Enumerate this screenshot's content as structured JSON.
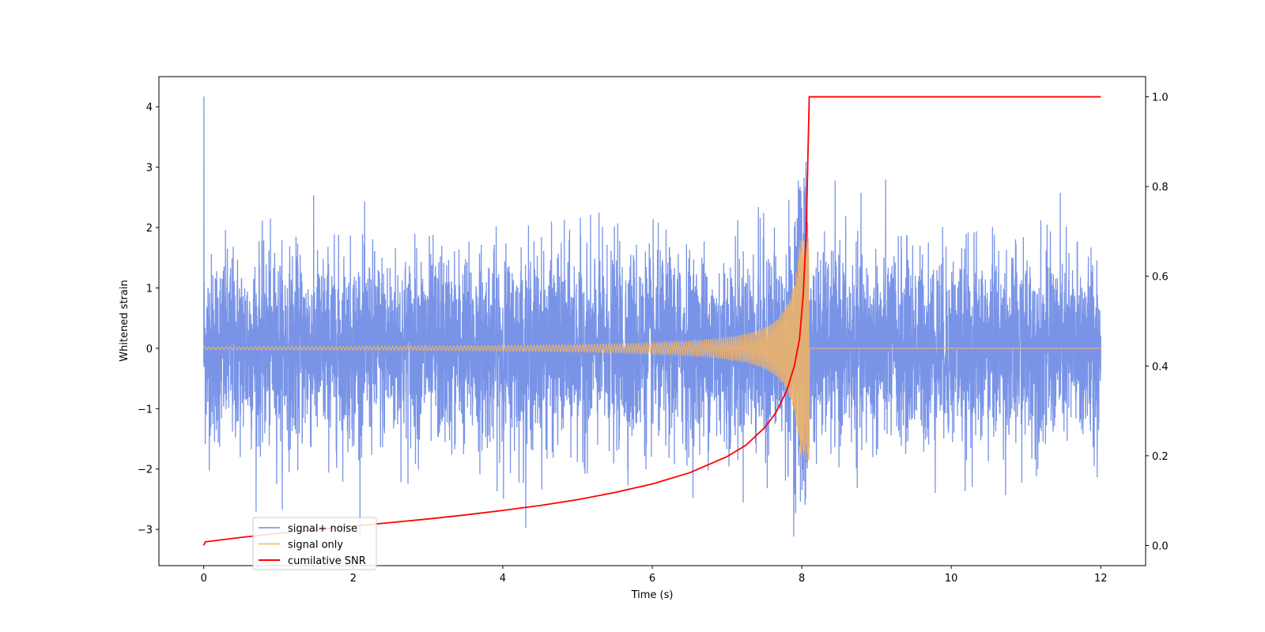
{
  "chart_data": {
    "type": "line",
    "xlabel": "Time (s)",
    "ylabel": "Whitened strain",
    "xlim": [
      -0.6,
      12.6
    ],
    "ylim": [
      -3.6,
      4.5
    ],
    "ylim_right": [
      -0.045,
      1.045
    ],
    "x_ticks": [
      0,
      2,
      4,
      6,
      8,
      10,
      12
    ],
    "x_tick_labels": [
      "0",
      "2",
      "4",
      "6",
      "8",
      "10",
      "12"
    ],
    "y_ticks": [
      -3,
      -2,
      -1,
      0,
      1,
      2,
      3,
      4
    ],
    "y_tick_labels": [
      "−3",
      "−2",
      "−1",
      "0",
      "1",
      "2",
      "3",
      "4"
    ],
    "y_right_ticks": [
      0.0,
      0.2,
      0.4,
      0.6,
      0.8,
      1.0
    ],
    "y_right_tick_labels": [
      "0.0",
      "0.2",
      "0.4",
      "0.6",
      "0.8",
      "1.0"
    ],
    "grid": false,
    "legend_position": "lower-left",
    "series": [
      {
        "name": "signal+ noise",
        "axis": "left",
        "color": "#6a88e4",
        "description_values": {
          "x_range": [
            0,
            12
          ],
          "noise_std": 0.8,
          "peak_max": 4.17,
          "peak_min": -3.1
        }
      },
      {
        "name": "signal only",
        "axis": "left",
        "color": "#f5b462",
        "description_values": {
          "chirp_start": 0,
          "merger_time": 8.1,
          "peak_amplitude": 1.85,
          "x_range": [
            0,
            12
          ]
        }
      },
      {
        "name": "cumilative SNR",
        "axis": "right",
        "color": "#ff0000",
        "x": [
          0,
          0.02,
          0.5,
          1,
          1.5,
          2,
          2.5,
          3,
          3.5,
          4,
          4.5,
          5,
          5.5,
          6,
          6.5,
          7,
          7.25,
          7.5,
          7.65,
          7.8,
          7.9,
          7.97,
          8.02,
          8.06,
          8.1,
          9,
          10,
          11,
          12
        ],
        "y": [
          0.0,
          0.008,
          0.018,
          0.027,
          0.035,
          0.043,
          0.051,
          0.059,
          0.068,
          0.078,
          0.089,
          0.102,
          0.118,
          0.137,
          0.162,
          0.198,
          0.223,
          0.262,
          0.295,
          0.345,
          0.4,
          0.46,
          0.56,
          0.7,
          1.0,
          1.0,
          1.0,
          1.0,
          1.0
        ]
      }
    ]
  }
}
